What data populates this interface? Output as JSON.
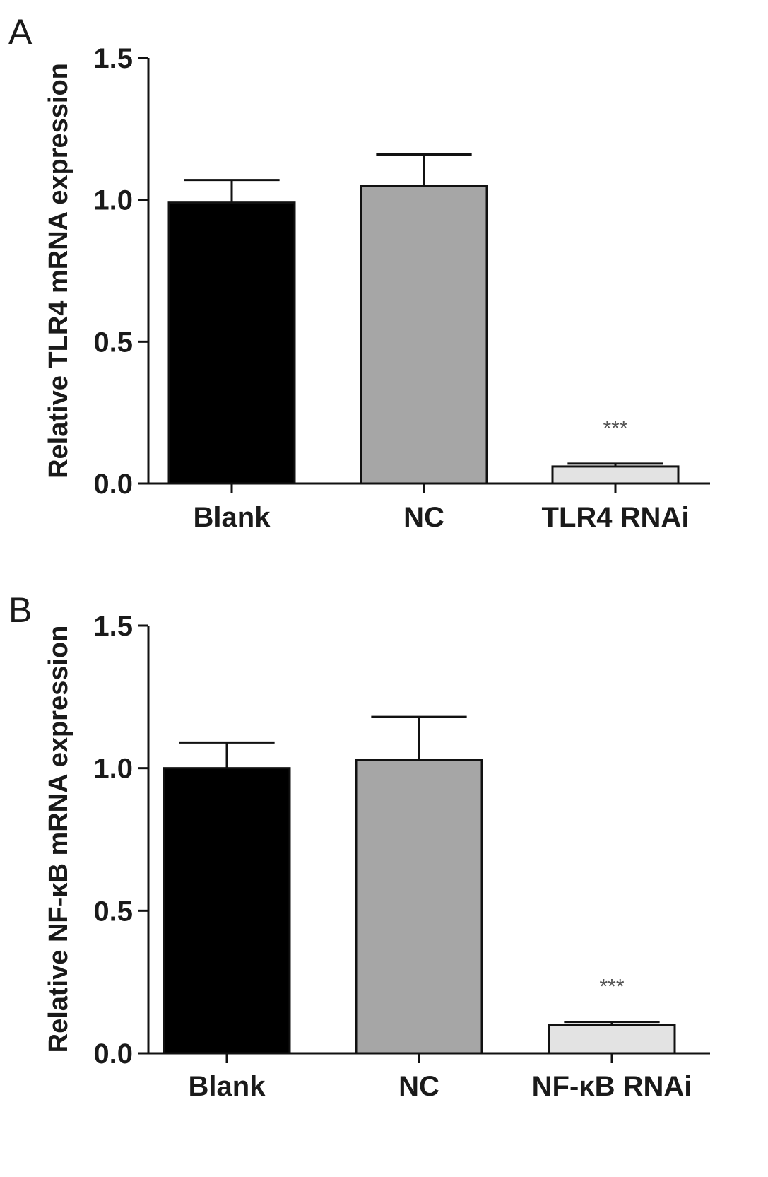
{
  "chart_data": [
    {
      "type": "bar",
      "panel_label": "A",
      "ylabel": "Relative TLR4 mRNA expression",
      "xlabel": "",
      "ylim": [
        0,
        1.5
      ],
      "yticks": [
        "0.0",
        "0.5",
        "1.0",
        "1.5"
      ],
      "categories": [
        "Blank",
        "NC",
        "TLR4 RNAi"
      ],
      "values": [
        0.99,
        1.05,
        0.06
      ],
      "errors": [
        0.08,
        0.11,
        0.01
      ],
      "colors": [
        "#000000",
        "#a6a6a6",
        "#e3e3e3"
      ],
      "annotations": [
        "",
        "",
        "***"
      ],
      "grid": false
    },
    {
      "type": "bar",
      "panel_label": "B",
      "ylabel": "Relative NF-κB mRNA expression",
      "xlabel": "",
      "ylim": [
        0,
        1.5
      ],
      "yticks": [
        "0.0",
        "0.5",
        "1.0",
        "1.5"
      ],
      "categories": [
        "Blank",
        "NC",
        "NF-κB RNAi"
      ],
      "values": [
        1.0,
        1.03,
        0.1
      ],
      "errors": [
        0.09,
        0.15,
        0.01
      ],
      "colors": [
        "#000000",
        "#a6a6a6",
        "#e3e3e3"
      ],
      "annotations": [
        "",
        "",
        "***"
      ],
      "grid": false
    }
  ]
}
